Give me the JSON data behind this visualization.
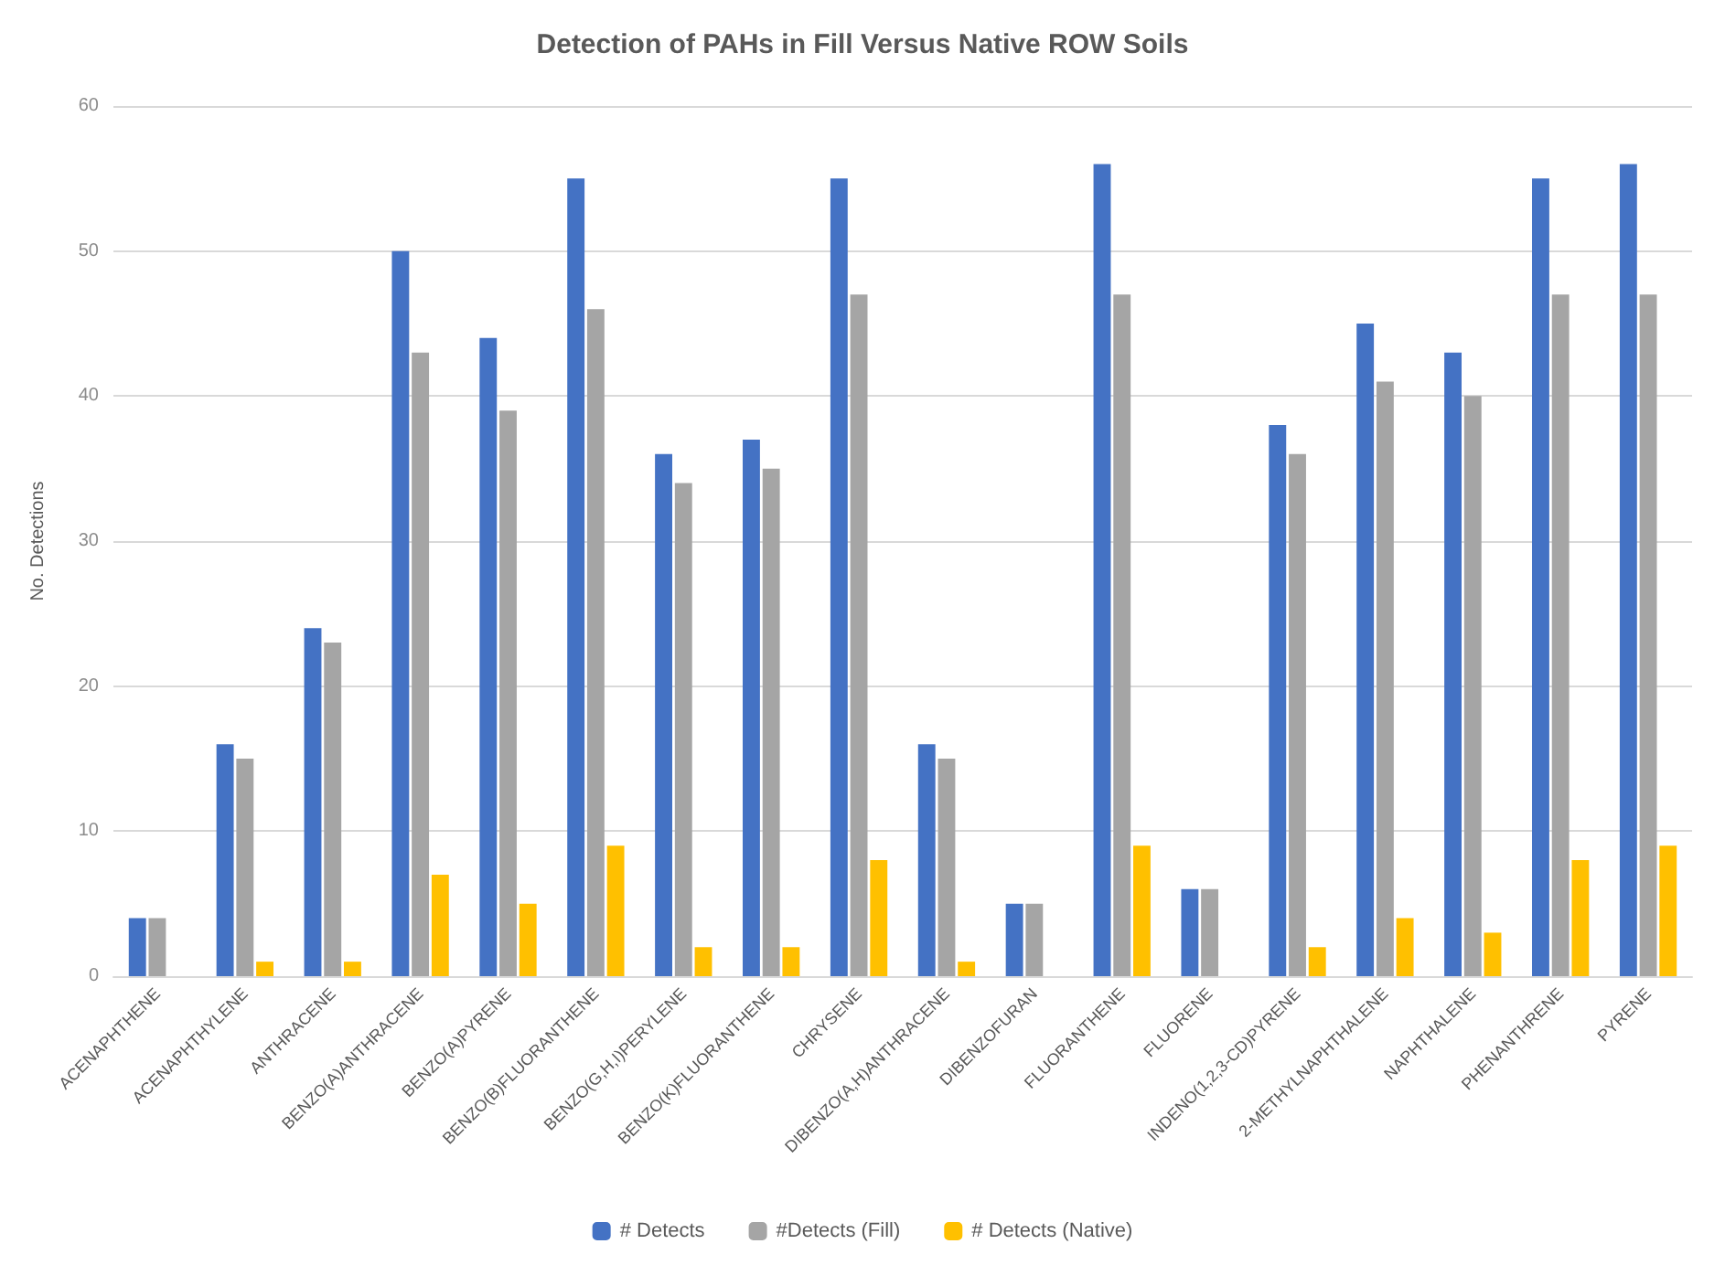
{
  "chart_data": {
    "type": "bar",
    "title": "Detection of PAHs in Fill Versus Native ROW Soils",
    "ylabel": "No. Detections",
    "categories": [
      "ACENAPHTHENE",
      "ACENAPHTHYLENE",
      "ANTHRACENE",
      "BENZO(A)ANTHRACENE",
      "BENZO(A)PYRENE",
      "BENZO(B)FLUORANTHENE",
      "BENZO(G,H,I)PERYLENE",
      "BENZO(K)FLUORANTHENE",
      "CHRYSENE",
      "DIBENZO(A,H)ANTHRACENE",
      "DIBENZOFURAN",
      "FLUORANTHENE",
      "FLUORENE",
      "INDENO(1,2,3-CD)PYRENE",
      "2-METHYLNAPHTHALENE",
      "NAPHTHALENE",
      "PHENANTHRENE",
      "PYRENE"
    ],
    "series": [
      {
        "name": "# Detects",
        "color": "#4472c4",
        "values": [
          4,
          16,
          24,
          50,
          44,
          55,
          36,
          37,
          55,
          16,
          5,
          56,
          6,
          38,
          45,
          43,
          55,
          56
        ]
      },
      {
        "name": "#Detects (Fill)",
        "color": "#a5a5a5",
        "values": [
          4,
          15,
          23,
          43,
          39,
          46,
          34,
          35,
          47,
          15,
          5,
          47,
          6,
          36,
          41,
          40,
          47,
          47
        ]
      },
      {
        "name": "# Detects (Native)",
        "color": "#ffc000",
        "values": [
          0,
          1,
          1,
          7,
          5,
          9,
          2,
          2,
          8,
          1,
          0,
          9,
          0,
          2,
          4,
          3,
          8,
          9
        ]
      }
    ],
    "ylim": [
      0,
      60
    ],
    "yticks": [
      0,
      10,
      20,
      30,
      40,
      50,
      60
    ],
    "grid": "y",
    "legend": "bottom"
  }
}
